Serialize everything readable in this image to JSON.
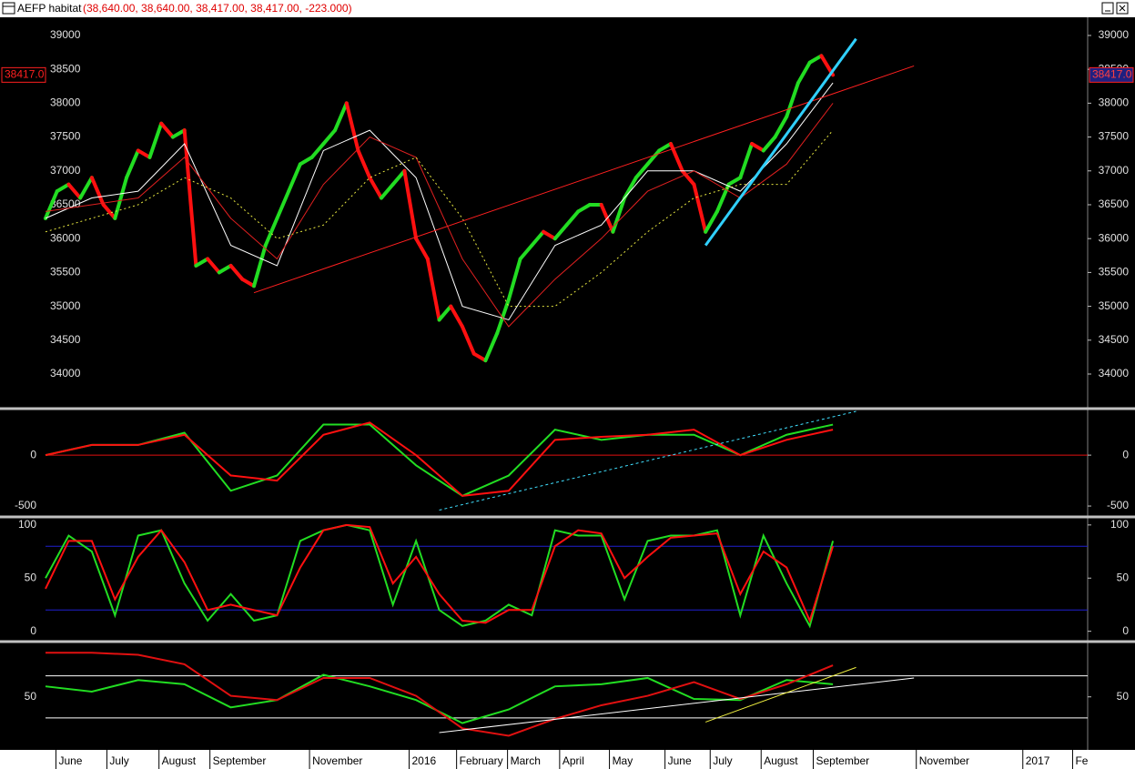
{
  "window": {
    "title": "AEFP habitat",
    "quote": "(38,640.00, 38,640.00, 38,417.00, 38,417.00, -223.000)"
  },
  "chart_data": [
    {
      "type": "line",
      "xlim": [
        0,
        90
      ],
      "ylim": [
        33516,
        39255
      ],
      "yticks": [
        34000,
        34500,
        35000,
        35500,
        36000,
        36500,
        37000,
        37500,
        38000,
        38500,
        39000
      ],
      "last_price": {
        "value": 38417,
        "label": "38417.0"
      },
      "series": [
        {
          "style": "updown",
          "color": "#22dd22",
          "down_color": "#ff1010",
          "x": [
            0,
            1,
            2,
            3,
            4,
            5,
            6,
            7,
            8,
            9,
            10,
            11,
            12,
            13,
            14,
            15,
            16,
            17,
            18,
            19,
            20,
            21,
            22,
            23,
            24,
            25,
            26,
            27,
            28,
            29,
            30,
            31,
            32,
            33,
            34,
            35,
            36,
            37,
            38,
            39,
            40,
            41,
            42,
            43,
            44,
            45,
            46,
            47,
            48,
            49,
            50,
            51,
            52,
            53,
            54,
            55,
            56,
            57,
            58,
            59,
            60,
            61,
            62,
            63,
            64,
            65,
            66,
            67,
            68
          ],
          "values": [
            36300,
            36700,
            36800,
            36600,
            36900,
            36500,
            36300,
            36900,
            37300,
            37200,
            37700,
            37500,
            37600,
            35600,
            35700,
            35500,
            35600,
            35400,
            35300,
            35900,
            36300,
            36700,
            37100,
            37200,
            37400,
            37600,
            38000,
            37300,
            36900,
            36600,
            36800,
            37000,
            36000,
            35700,
            34800,
            35000,
            34700,
            34300,
            34200,
            34600,
            35100,
            35700,
            35900,
            36100,
            36000,
            36200,
            36400,
            36500,
            36500,
            36100,
            36600,
            36900,
            37100,
            37300,
            37400,
            37000,
            36800,
            36100,
            36400,
            36800,
            36900,
            37400,
            37300,
            37500,
            37800,
            38300,
            38600,
            38700,
            38417
          ]
        },
        {
          "color": "#ffffff",
          "x": [
            0,
            4,
            8,
            12,
            16,
            20,
            24,
            28,
            32,
            36,
            40,
            44,
            48,
            52,
            56,
            60,
            64,
            68
          ],
          "values": [
            36300,
            36600,
            36700,
            37400,
            35900,
            35600,
            37300,
            37600,
            36900,
            35000,
            34800,
            35900,
            36200,
            37000,
            37000,
            36700,
            37400,
            38300
          ]
        },
        {
          "color": "#e02020",
          "x": [
            0,
            4,
            8,
            12,
            16,
            20,
            24,
            28,
            32,
            36,
            40,
            44,
            48,
            52,
            56,
            60,
            64,
            68
          ],
          "values": [
            36400,
            36500,
            36600,
            37200,
            36300,
            35700,
            36800,
            37500,
            37200,
            35700,
            34700,
            35400,
            36000,
            36700,
            37000,
            36600,
            37100,
            38000
          ]
        },
        {
          "style": "dotted",
          "color": "#e8e840",
          "x": [
            0,
            4,
            8,
            12,
            16,
            20,
            24,
            28,
            32,
            36,
            40,
            44,
            48,
            52,
            56,
            60,
            64,
            68
          ],
          "values": [
            36100,
            36300,
            36500,
            36900,
            36600,
            36000,
            36200,
            36900,
            37200,
            36300,
            35000,
            35000,
            35500,
            36100,
            36600,
            36800,
            36800,
            37600
          ]
        }
      ],
      "trendlines": [
        {
          "color": "#ff2020",
          "x": [
            18,
            75
          ],
          "values": [
            35200,
            38550
          ]
        },
        {
          "color": "#30d0ff",
          "x": [
            57,
            70
          ],
          "values": [
            35900,
            38950
          ]
        }
      ]
    },
    {
      "type": "line",
      "xlim": [
        0,
        90
      ],
      "ylim": [
        -580,
        430
      ],
      "yticks": [
        -500,
        0
      ],
      "hlines": [
        {
          "value": 0,
          "color": "#e01010"
        }
      ],
      "series": [
        {
          "color": "#22dd22",
          "x": [
            0,
            4,
            8,
            12,
            16,
            20,
            24,
            28,
            32,
            36,
            40,
            44,
            48,
            52,
            56,
            60,
            64,
            68
          ],
          "values": [
            0,
            100,
            100,
            220,
            -350,
            -200,
            300,
            300,
            -100,
            -400,
            -200,
            250,
            150,
            200,
            200,
            0,
            200,
            300
          ]
        },
        {
          "color": "#ff1010",
          "x": [
            0,
            4,
            8,
            12,
            16,
            20,
            24,
            28,
            32,
            36,
            40,
            44,
            48,
            52,
            56,
            60,
            64,
            68
          ],
          "values": [
            0,
            100,
            100,
            200,
            -200,
            -250,
            200,
            320,
            0,
            -400,
            -350,
            150,
            180,
            200,
            250,
            0,
            150,
            250
          ]
        }
      ],
      "trendlines": [
        {
          "color": "#40e0ff",
          "dash": true,
          "x": [
            34,
            70
          ],
          "values": [
            -540,
            430
          ]
        }
      ]
    },
    {
      "type": "line",
      "xlim": [
        0,
        90
      ],
      "ylim": [
        -8,
        105
      ],
      "yticks": [
        0,
        50,
        100
      ],
      "hlines": [
        {
          "value": 80,
          "color": "#2020d0"
        },
        {
          "value": 20,
          "color": "#2020d0"
        }
      ],
      "series": [
        {
          "color": "#22dd22",
          "x": [
            0,
            2,
            4,
            6,
            8,
            10,
            12,
            14,
            16,
            18,
            20,
            22,
            24,
            26,
            28,
            30,
            32,
            34,
            36,
            38,
            40,
            42,
            44,
            46,
            48,
            50,
            52,
            54,
            56,
            58,
            60,
            62,
            64,
            66,
            68
          ],
          "values": [
            50,
            90,
            75,
            15,
            90,
            95,
            45,
            10,
            35,
            10,
            15,
            85,
            95,
            100,
            95,
            25,
            85,
            20,
            5,
            10,
            25,
            15,
            95,
            90,
            90,
            30,
            85,
            90,
            90,
            95,
            15,
            90,
            45,
            5,
            85
          ]
        },
        {
          "color": "#ff1010",
          "x": [
            0,
            2,
            4,
            6,
            8,
            10,
            12,
            14,
            16,
            18,
            20,
            22,
            24,
            26,
            28,
            30,
            32,
            34,
            36,
            38,
            40,
            42,
            44,
            46,
            48,
            50,
            52,
            54,
            56,
            58,
            60,
            62,
            64,
            66,
            68
          ],
          "values": [
            40,
            85,
            85,
            30,
            70,
            95,
            65,
            20,
            25,
            20,
            15,
            60,
            95,
            100,
            98,
            45,
            70,
            35,
            10,
            8,
            20,
            20,
            80,
            95,
            92,
            50,
            70,
            88,
            90,
            92,
            35,
            75,
            60,
            10,
            80
          ]
        }
      ]
    },
    {
      "type": "line",
      "xlim": [
        0,
        90
      ],
      "ylim": [
        3,
        100
      ],
      "yticks": [
        50
      ],
      "hlines": [
        {
          "value": 70,
          "color": "#ffffff"
        },
        {
          "value": 30,
          "color": "#ffffff"
        }
      ],
      "series": [
        {
          "color": "#22dd22",
          "x": [
            0,
            4,
            8,
            12,
            16,
            20,
            24,
            28,
            32,
            36,
            40,
            44,
            48,
            52,
            56,
            60,
            64,
            68
          ],
          "values": [
            60,
            55,
            66,
            62,
            40,
            47,
            71,
            60,
            47,
            25,
            38,
            60,
            62,
            68,
            48,
            47,
            66,
            62
          ]
        },
        {
          "color": "#e01010",
          "x": [
            0,
            4,
            8,
            12,
            16,
            20,
            24,
            28,
            32,
            36,
            40,
            44,
            48,
            52,
            56,
            60,
            64,
            68
          ],
          "values": [
            92,
            92,
            90,
            81,
            51,
            47,
            68,
            68,
            51,
            20,
            13,
            29,
            42,
            51,
            64,
            48,
            62,
            80
          ]
        }
      ],
      "trendlines": [
        {
          "color": "#ffffff",
          "x": [
            34,
            75
          ],
          "values": [
            16,
            68
          ]
        },
        {
          "color": "#f0f040",
          "x": [
            57,
            70
          ],
          "values": [
            26,
            78
          ]
        }
      ],
      "xticks": [
        {
          "value": 0.9,
          "label": "June"
        },
        {
          "value": 5.3,
          "label": "July"
        },
        {
          "value": 9.8,
          "label": "August"
        },
        {
          "value": 14.2,
          "label": "September"
        },
        {
          "value": 22.8,
          "label": "November"
        },
        {
          "value": 31.4,
          "label": "2016"
        },
        {
          "value": 35.5,
          "label": "February"
        },
        {
          "value": 39.9,
          "label": "March"
        },
        {
          "value": 44.4,
          "label": "April"
        },
        {
          "value": 48.7,
          "label": "May"
        },
        {
          "value": 53.5,
          "label": "June"
        },
        {
          "value": 57.4,
          "label": "July"
        },
        {
          "value": 61.8,
          "label": "August"
        },
        {
          "value": 66.3,
          "label": "September"
        },
        {
          "value": 75.2,
          "label": "November"
        },
        {
          "value": 84.4,
          "label": "2017"
        },
        {
          "value": 88.7,
          "label": "Fe"
        }
      ]
    }
  ]
}
